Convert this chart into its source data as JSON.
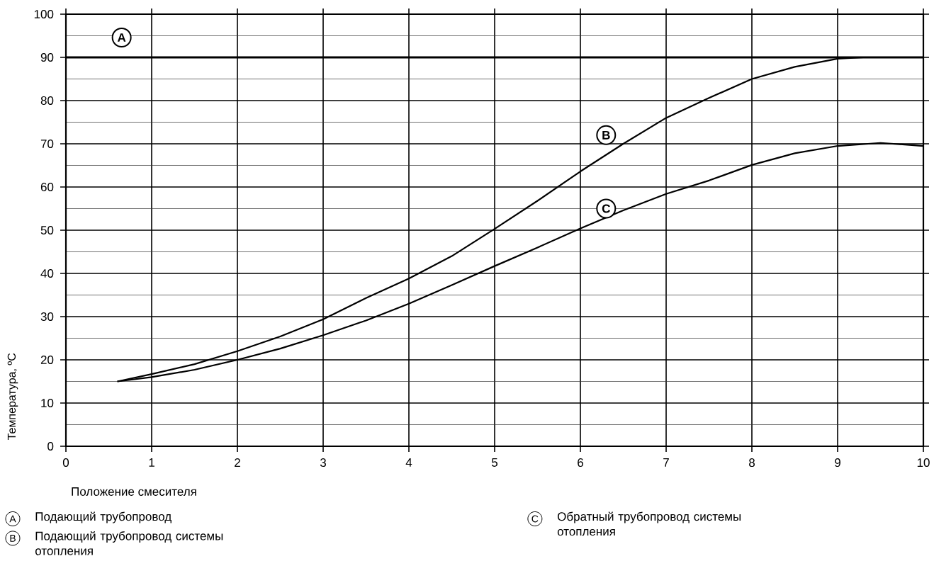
{
  "chart_data": {
    "type": "line",
    "xlabel": "Положение смесителя",
    "ylabel": "Температура, ºC",
    "xlim": [
      0,
      10
    ],
    "ylim": [
      0,
      100
    ],
    "xticks": [
      0,
      1,
      2,
      3,
      4,
      5,
      6,
      7,
      8,
      9,
      10
    ],
    "yticks": [
      0,
      10,
      20,
      30,
      40,
      50,
      60,
      70,
      80,
      90,
      100
    ],
    "grid": true,
    "legend": "top left",
    "marker": "none",
    "line_style": "solid",
    "ref_lines": [
      {
        "axis": "y",
        "value": 90,
        "label": "A",
        "color": "#000000"
      }
    ],
    "series": [
      {
        "name": "B",
        "color": "#000000",
        "x": [
          0.6,
          1,
          1.5,
          2,
          2.5,
          3,
          3.5,
          4,
          4.5,
          5,
          5.5,
          6,
          6.5,
          7,
          7.5,
          8,
          8.5,
          9,
          9.3,
          9.6,
          10
        ],
        "values": [
          15,
          16.7,
          19,
          22,
          25.4,
          29.4,
          34.3,
          38.8,
          44,
          50.3,
          56.8,
          63.6,
          70,
          76,
          80.6,
          85,
          87.8,
          89.7,
          90,
          90,
          90
        ]
      },
      {
        "name": "C",
        "color": "#000000",
        "x": [
          0.6,
          1,
          1.5,
          2,
          2.5,
          3,
          3.5,
          4,
          4.5,
          5,
          5.5,
          6,
          6.5,
          7,
          7.5,
          8,
          8.5,
          9,
          9.5,
          10
        ],
        "values": [
          15,
          16,
          17.7,
          20,
          22.6,
          25.7,
          29.1,
          33,
          37.3,
          41.7,
          46,
          50.4,
          54.6,
          58.4,
          61.5,
          65.1,
          67.8,
          69.5,
          70.2,
          69.5
        ]
      }
    ],
    "annotations": [
      "A",
      "Подающий трубопровод",
      "B",
      "Подающий трубопровод системы отопления",
      "C",
      "Обратный трубопровод системы отопления"
    ]
  }
}
